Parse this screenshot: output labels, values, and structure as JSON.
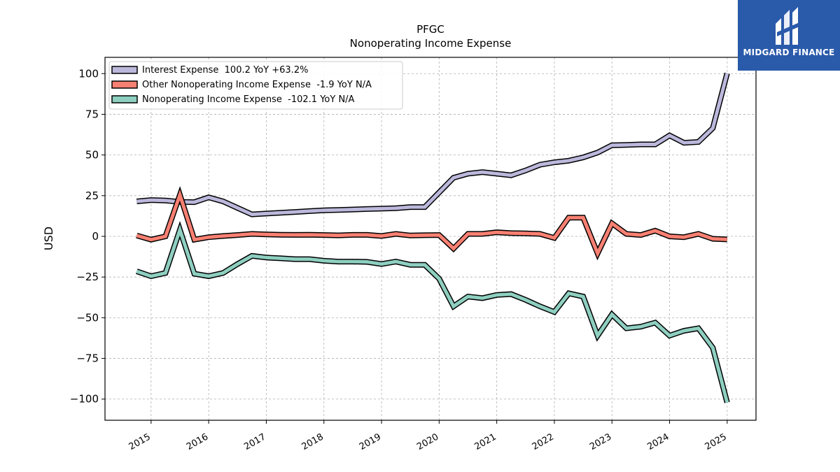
{
  "brand": {
    "name": "MIDGARD FINANCE",
    "color": "#2a5aaa"
  },
  "chart_data": {
    "type": "line",
    "title": "PFGC",
    "subtitle": "Nonoperating Income Expense",
    "xlabel": "",
    "ylabel": "USD",
    "ylim": [
      -113,
      110
    ],
    "xlim": [
      2014.2,
      2025.5
    ],
    "yticks": [
      100,
      75,
      50,
      25,
      0,
      -25,
      -50,
      -75,
      -100
    ],
    "ytick_labels": [
      "100",
      "75",
      "50",
      "25",
      "0",
      "−25",
      "−50",
      "−75",
      "−100"
    ],
    "xticks": [
      2015,
      2016,
      2017,
      2018,
      2019,
      2020,
      2021,
      2022,
      2023,
      2024,
      2025
    ],
    "xtick_labels": [
      "2015",
      "2016",
      "2017",
      "2018",
      "2019",
      "2020",
      "2021",
      "2022",
      "2023",
      "2024",
      "2025"
    ],
    "grid": true,
    "legend_position": "top-left",
    "x": [
      2014.75,
      2015.0,
      2015.25,
      2015.5,
      2015.75,
      2016.0,
      2016.25,
      2016.5,
      2016.75,
      2017.0,
      2017.25,
      2017.5,
      2017.75,
      2018.0,
      2018.25,
      2018.5,
      2018.75,
      2019.0,
      2019.25,
      2019.5,
      2019.75,
      2020.0,
      2020.25,
      2020.5,
      2020.75,
      2021.0,
      2021.25,
      2021.5,
      2021.75,
      2022.0,
      2022.25,
      2022.5,
      2022.75,
      2023.0,
      2023.25,
      2023.5,
      2023.75,
      2024.0,
      2024.25,
      2024.5,
      2024.75,
      2025.0
    ],
    "series": [
      {
        "name": "Interest Expense  100.2 YoY +63.2%",
        "color": "#bcb8dc",
        "values": [
          21.5,
          22.3,
          22.0,
          21.2,
          21.0,
          24.0,
          21.5,
          17.5,
          13.5,
          14.0,
          14.5,
          15.0,
          15.5,
          16.0,
          16.2,
          16.5,
          16.8,
          17.0,
          17.3,
          18.0,
          18.0,
          27.0,
          36.0,
          38.5,
          39.5,
          38.5,
          37.5,
          40.5,
          44.0,
          45.5,
          46.5,
          48.5,
          51.5,
          56.0,
          56.2,
          56.5,
          56.5,
          62.0,
          57.5,
          58.0,
          66.5,
          100.2
        ]
      },
      {
        "name": "Other Nonoperating Income Expense  -1.9 YoY N/A",
        "color": "#f88072",
        "values": [
          0.5,
          -2.0,
          0.0,
          25.5,
          -2.0,
          -0.5,
          0.2,
          0.8,
          1.5,
          1.2,
          1.0,
          0.9,
          1.0,
          0.8,
          0.6,
          0.9,
          0.9,
          0.2,
          1.5,
          0.5,
          0.7,
          0.8,
          -7.5,
          1.5,
          1.5,
          2.5,
          2.0,
          1.8,
          1.5,
          -1.0,
          11.5,
          11.5,
          -10.5,
          8.0,
          1.5,
          0.8,
          3.5,
          0.0,
          -0.5,
          1.5,
          -1.5,
          -1.9
        ]
      },
      {
        "name": "Nonoperating Income Expense  -102.1 YoY N/A",
        "color": "#8ecfc0",
        "values": [
          -21.5,
          -24.5,
          -22.5,
          4.0,
          -23.0,
          -24.5,
          -22.5,
          -17.0,
          -12.0,
          -13.0,
          -13.5,
          -14.0,
          -14.0,
          -15.0,
          -15.5,
          -15.5,
          -15.7,
          -17.0,
          -15.5,
          -17.5,
          -17.5,
          -26.0,
          -43.0,
          -37.0,
          -38.0,
          -36.0,
          -35.5,
          -39.0,
          -43.0,
          -46.5,
          -35.0,
          -37.0,
          -61.0,
          -48.0,
          -56.5,
          -55.5,
          -53.0,
          -61.0,
          -58.0,
          -56.5,
          -68.5,
          -102.1
        ]
      }
    ]
  }
}
